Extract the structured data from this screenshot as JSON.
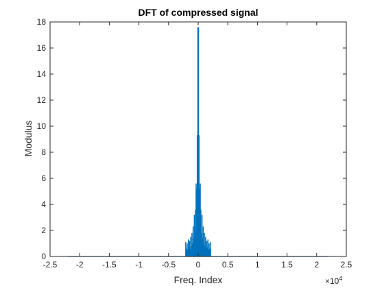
{
  "chart_data": {
    "type": "bar",
    "title": "DFT of compressed signal",
    "xlabel": "Freq. Index",
    "ylabel": "Modulus",
    "xlim": [
      -25000,
      25000
    ],
    "ylim": [
      0,
      18
    ],
    "x_ticks": [
      -25000,
      -20000,
      -15000,
      -10000,
      -5000,
      0,
      5000,
      10000,
      15000,
      20000,
      25000
    ],
    "x_tick_labels": [
      "-2.5",
      "-2",
      "-1.5",
      "-1",
      "-0.5",
      "0",
      "0.5",
      "1",
      "1.5",
      "2",
      "2.5"
    ],
    "y_ticks": [
      0,
      2,
      4,
      6,
      8,
      10,
      12,
      14,
      16,
      18
    ],
    "y_tick_labels": [
      "0",
      "2",
      "4",
      "6",
      "8",
      "10",
      "12",
      "14",
      "16",
      "18"
    ],
    "x_exponent_label": "×10",
    "x_exponent_power": "4",
    "grid": false,
    "baseline_range": [
      -22000,
      22000
    ],
    "series": [
      {
        "color": "#0072BD",
        "points": [
          [
            -2100,
            1.1
          ],
          [
            -1950,
            0.6
          ],
          [
            -1850,
            1.0
          ],
          [
            -1750,
            0.5
          ],
          [
            -1650,
            1.3
          ],
          [
            -1550,
            0.7
          ],
          [
            -1450,
            1.2
          ],
          [
            -1350,
            0.6
          ],
          [
            -1250,
            1.5
          ],
          [
            -1150,
            0.8
          ],
          [
            -1050,
            1.8
          ],
          [
            -950,
            1.0
          ],
          [
            -850,
            2.3
          ],
          [
            -750,
            1.4
          ],
          [
            -650,
            3.2
          ],
          [
            -550,
            1.8
          ],
          [
            -450,
            3.6
          ],
          [
            -350,
            5.6
          ],
          [
            -300,
            4.2
          ],
          [
            -250,
            5.2
          ],
          [
            -200,
            3.9
          ],
          [
            -150,
            9.3
          ],
          [
            -100,
            4.8
          ],
          [
            -50,
            17.6
          ],
          [
            0,
            2.0
          ],
          [
            50,
            17.6
          ],
          [
            100,
            4.8
          ],
          [
            150,
            9.3
          ],
          [
            200,
            3.9
          ],
          [
            250,
            5.2
          ],
          [
            300,
            4.2
          ],
          [
            350,
            5.6
          ],
          [
            450,
            3.6
          ],
          [
            550,
            1.8
          ],
          [
            650,
            3.2
          ],
          [
            750,
            1.4
          ],
          [
            850,
            2.3
          ],
          [
            950,
            1.0
          ],
          [
            1050,
            1.8
          ],
          [
            1150,
            0.8
          ],
          [
            1250,
            1.5
          ],
          [
            1350,
            0.6
          ],
          [
            1450,
            1.2
          ],
          [
            1550,
            0.7
          ],
          [
            1650,
            1.3
          ],
          [
            1750,
            0.5
          ],
          [
            1850,
            1.0
          ],
          [
            1950,
            0.6
          ],
          [
            2100,
            1.1
          ]
        ]
      }
    ]
  }
}
